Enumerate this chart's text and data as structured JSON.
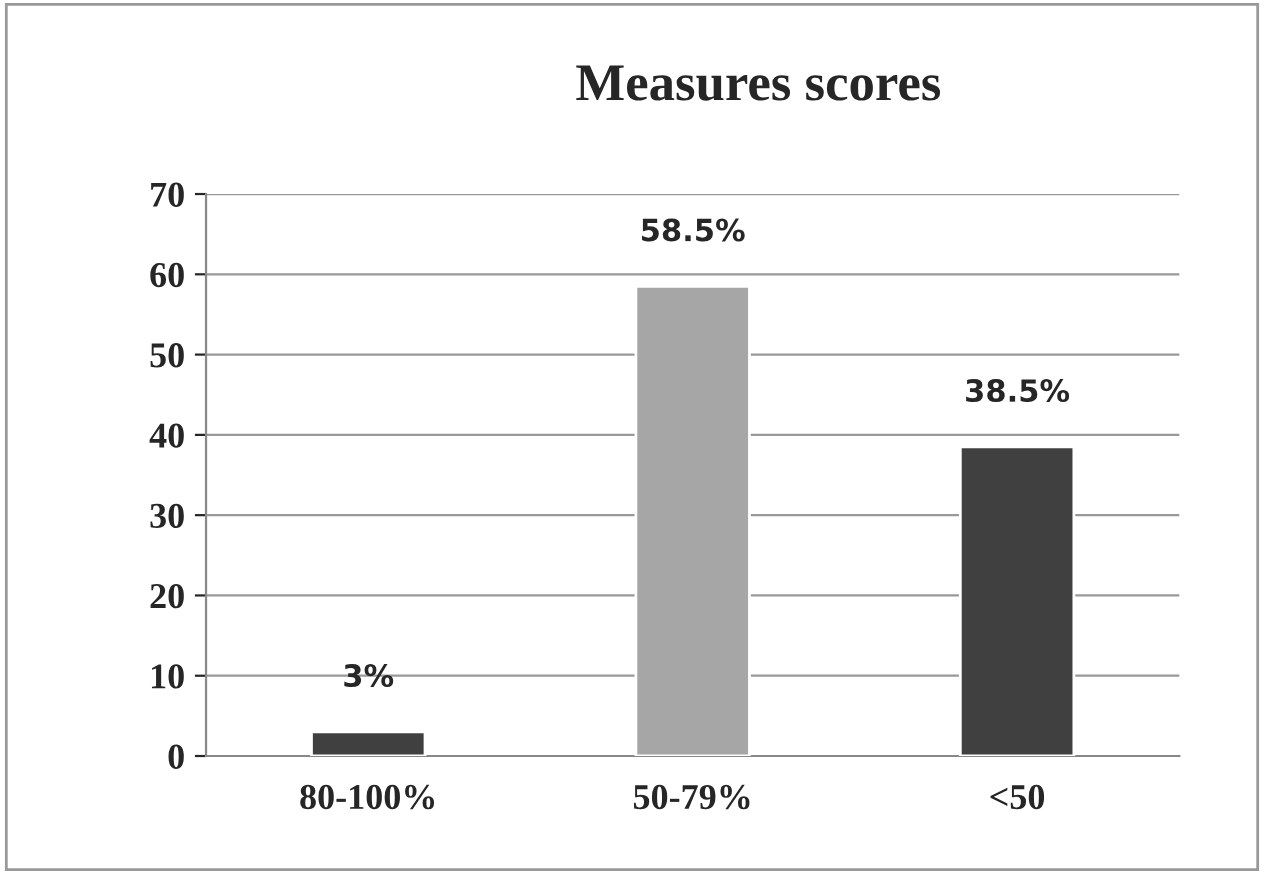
{
  "chart_data": {
    "type": "bar",
    "title": "Measures scores",
    "categories": [
      "80-100%",
      "50-79%",
      "<50"
    ],
    "values": [
      3,
      58.5,
      38.5
    ],
    "colors": [
      "#404040",
      "#a6a6a6",
      "#404040"
    ],
    "value_labels": [
      "3%",
      "58.5%",
      "38.5%"
    ],
    "ylim": [
      0,
      70
    ],
    "yticks": [
      0,
      10,
      20,
      30,
      40,
      50,
      60,
      70
    ],
    "grid": "y"
  }
}
